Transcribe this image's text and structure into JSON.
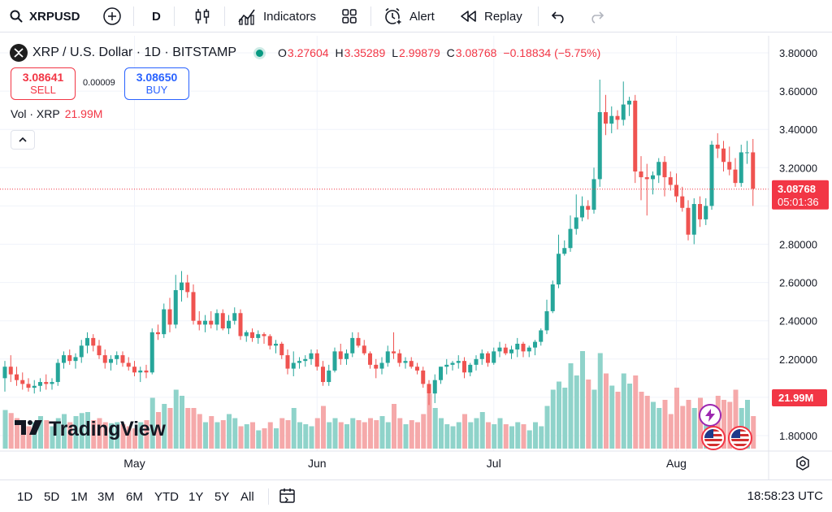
{
  "toolbar": {
    "symbol": "XRPUSD",
    "interval": "D",
    "indicators_label": "Indicators",
    "alert_label": "Alert",
    "replay_label": "Replay"
  },
  "legend": {
    "title": "XRP / U.S. Dollar · 1D · BITSTAMP",
    "open_key": "O",
    "open": "3.27604",
    "high_key": "H",
    "high": "3.35289",
    "low_key": "L",
    "low": "2.99879",
    "close_key": "C",
    "close": "3.08768",
    "change": "−0.18834 (−5.75%)"
  },
  "trade": {
    "sell_price": "3.08641",
    "sell_label": "SELL",
    "spread": "0.00009",
    "buy_price": "3.08650",
    "buy_label": "BUY"
  },
  "volume_legend": {
    "label": "Vol · XRP",
    "value": "21.99M"
  },
  "branding": {
    "logo_text": "TradingView"
  },
  "price_axis": {
    "ticks": [
      "3.80000",
      "3.60000",
      "3.40000",
      "3.20000",
      "2.80000",
      "2.60000",
      "2.40000",
      "2.20000",
      "1.80000"
    ],
    "last_price": "3.08768",
    "countdown": "05:01:36",
    "volume_tag": "21.99M"
  },
  "time_axis": {
    "labels": [
      "May",
      "Jun",
      "Jul",
      "Aug"
    ]
  },
  "bottom_bar": {
    "ranges": [
      "1D",
      "5D",
      "1M",
      "3M",
      "6M",
      "YTD",
      "1Y",
      "5Y",
      "All"
    ],
    "clock": "18:58:23 UTC"
  },
  "colors": {
    "up": "#26a69a",
    "down": "#ef5350",
    "up_vol": "#8fd3ca",
    "down_vol": "#f5a9aa",
    "accent": "#2962ff"
  },
  "chart_data": {
    "type": "candlestick",
    "title": "XRP / U.S. Dollar · 1D · BITSTAMP",
    "ylim": [
      1.71,
      3.88
    ],
    "x_start": "2025-04-09",
    "candles": [
      [
        2.1,
        2.19,
        2.03,
        2.16
      ],
      [
        2.16,
        2.22,
        2.08,
        2.12
      ],
      [
        2.12,
        2.16,
        2.06,
        2.09
      ],
      [
        2.09,
        2.13,
        2.04,
        2.07
      ],
      [
        2.07,
        2.1,
        2.03,
        2.05
      ],
      [
        2.05,
        2.09,
        2.02,
        2.06
      ],
      [
        2.06,
        2.1,
        2.03,
        2.08
      ],
      [
        2.08,
        2.12,
        2.04,
        2.07
      ],
      [
        2.07,
        2.1,
        2.04,
        2.08
      ],
      [
        2.08,
        2.2,
        2.06,
        2.18
      ],
      [
        2.18,
        2.24,
        2.15,
        2.22
      ],
      [
        2.22,
        2.25,
        2.17,
        2.19
      ],
      [
        2.19,
        2.23,
        2.15,
        2.21
      ],
      [
        2.21,
        2.3,
        2.18,
        2.27
      ],
      [
        2.27,
        2.34,
        2.23,
        2.31
      ],
      [
        2.31,
        2.33,
        2.24,
        2.27
      ],
      [
        2.27,
        2.3,
        2.2,
        2.22
      ],
      [
        2.22,
        2.25,
        2.15,
        2.18
      ],
      [
        2.18,
        2.22,
        2.14,
        2.2
      ],
      [
        2.2,
        2.24,
        2.17,
        2.22
      ],
      [
        2.22,
        2.24,
        2.16,
        2.18
      ],
      [
        2.18,
        2.21,
        2.14,
        2.16
      ],
      [
        2.16,
        2.19,
        2.11,
        2.13
      ],
      [
        2.13,
        2.16,
        2.08,
        2.14
      ],
      [
        2.14,
        2.17,
        2.1,
        2.13
      ],
      [
        2.13,
        2.36,
        2.12,
        2.34
      ],
      [
        2.34,
        2.38,
        2.3,
        2.33
      ],
      [
        2.33,
        2.49,
        2.31,
        2.46
      ],
      [
        2.46,
        2.52,
        2.34,
        2.38
      ],
      [
        2.38,
        2.64,
        2.36,
        2.56
      ],
      [
        2.56,
        2.66,
        2.5,
        2.6
      ],
      [
        2.6,
        2.64,
        2.52,
        2.55
      ],
      [
        2.55,
        2.59,
        2.38,
        2.4
      ],
      [
        2.4,
        2.45,
        2.35,
        2.38
      ],
      [
        2.38,
        2.43,
        2.34,
        2.4
      ],
      [
        2.4,
        2.45,
        2.36,
        2.38
      ],
      [
        2.38,
        2.46,
        2.35,
        2.44
      ],
      [
        2.44,
        2.46,
        2.35,
        2.36
      ],
      [
        2.36,
        2.43,
        2.33,
        2.4
      ],
      [
        2.4,
        2.47,
        2.38,
        2.44
      ],
      [
        2.44,
        2.46,
        2.3,
        2.32
      ],
      [
        2.32,
        2.35,
        2.29,
        2.34
      ],
      [
        2.34,
        2.36,
        2.29,
        2.31
      ],
      [
        2.31,
        2.35,
        2.28,
        2.33
      ],
      [
        2.33,
        2.34,
        2.28,
        2.32
      ],
      [
        2.32,
        2.33,
        2.25,
        2.27
      ],
      [
        2.27,
        2.3,
        2.23,
        2.28
      ],
      [
        2.28,
        2.29,
        2.2,
        2.22
      ],
      [
        2.22,
        2.25,
        2.12,
        2.15
      ],
      [
        2.15,
        2.24,
        2.11,
        2.18
      ],
      [
        2.18,
        2.21,
        2.15,
        2.19
      ],
      [
        2.19,
        2.22,
        2.16,
        2.2
      ],
      [
        2.2,
        2.25,
        2.17,
        2.23
      ],
      [
        2.23,
        2.25,
        2.14,
        2.16
      ],
      [
        2.16,
        2.19,
        2.06,
        2.08
      ],
      [
        2.08,
        2.17,
        2.06,
        2.14
      ],
      [
        2.14,
        2.26,
        2.13,
        2.24
      ],
      [
        2.24,
        2.28,
        2.17,
        2.2
      ],
      [
        2.2,
        2.25,
        2.17,
        2.23
      ],
      [
        2.23,
        2.34,
        2.21,
        2.31
      ],
      [
        2.31,
        2.34,
        2.26,
        2.27
      ],
      [
        2.27,
        2.3,
        2.22,
        2.23
      ],
      [
        2.23,
        2.24,
        2.15,
        2.17
      ],
      [
        2.17,
        2.2,
        2.1,
        2.15
      ],
      [
        2.15,
        2.21,
        2.12,
        2.18
      ],
      [
        2.18,
        2.27,
        2.16,
        2.24
      ],
      [
        2.24,
        2.34,
        2.2,
        2.23
      ],
      [
        2.23,
        2.25,
        2.16,
        2.18
      ],
      [
        2.18,
        2.21,
        2.15,
        2.19
      ],
      [
        2.19,
        2.21,
        2.15,
        2.16
      ],
      [
        2.16,
        2.18,
        2.12,
        2.14
      ],
      [
        2.14,
        2.16,
        2.05,
        2.07
      ],
      [
        2.07,
        2.09,
        1.96,
        2.02
      ],
      [
        2.02,
        2.12,
        1.97,
        2.09
      ],
      [
        2.09,
        2.16,
        2.07,
        2.16
      ],
      [
        2.16,
        2.2,
        2.12,
        2.17
      ],
      [
        2.17,
        2.19,
        2.14,
        2.18
      ],
      [
        2.18,
        2.22,
        2.15,
        2.19
      ],
      [
        2.19,
        2.21,
        2.1,
        2.13
      ],
      [
        2.13,
        2.18,
        2.11,
        2.17
      ],
      [
        2.17,
        2.22,
        2.14,
        2.2
      ],
      [
        2.2,
        2.25,
        2.17,
        2.23
      ],
      [
        2.23,
        2.24,
        2.16,
        2.18
      ],
      [
        2.18,
        2.26,
        2.17,
        2.24
      ],
      [
        2.24,
        2.29,
        2.21,
        2.26
      ],
      [
        2.26,
        2.28,
        2.22,
        2.23
      ],
      [
        2.23,
        2.27,
        2.2,
        2.25
      ],
      [
        2.25,
        2.31,
        2.21,
        2.28
      ],
      [
        2.28,
        2.29,
        2.21,
        2.24
      ],
      [
        2.24,
        2.27,
        2.21,
        2.26
      ],
      [
        2.26,
        2.3,
        2.22,
        2.29
      ],
      [
        2.29,
        2.36,
        2.27,
        2.35
      ],
      [
        2.35,
        2.51,
        2.33,
        2.45
      ],
      [
        2.45,
        2.61,
        2.44,
        2.59
      ],
      [
        2.59,
        2.85,
        2.57,
        2.75
      ],
      [
        2.75,
        2.82,
        2.74,
        2.78
      ],
      [
        2.78,
        2.95,
        2.76,
        2.88
      ],
      [
        2.88,
        3.06,
        2.85,
        2.94
      ],
      [
        2.94,
        3.05,
        2.92,
        3.0
      ],
      [
        3.0,
        3.03,
        2.93,
        2.98
      ],
      [
        2.98,
        3.2,
        2.96,
        3.14
      ],
      [
        3.14,
        3.66,
        3.1,
        3.49
      ],
      [
        3.49,
        3.58,
        3.37,
        3.43
      ],
      [
        3.43,
        3.52,
        3.38,
        3.47
      ],
      [
        3.47,
        3.5,
        3.4,
        3.45
      ],
      [
        3.45,
        3.65,
        3.42,
        3.53
      ],
      [
        3.53,
        3.57,
        3.47,
        3.55
      ],
      [
        3.55,
        3.58,
        3.12,
        3.18
      ],
      [
        3.18,
        3.26,
        3.03,
        3.15
      ],
      [
        3.15,
        3.22,
        2.95,
        3.14
      ],
      [
        3.14,
        3.18,
        3.06,
        3.16
      ],
      [
        3.16,
        3.25,
        3.12,
        3.23
      ],
      [
        3.23,
        3.26,
        3.05,
        3.15
      ],
      [
        3.15,
        3.18,
        3.08,
        3.11
      ],
      [
        3.11,
        3.17,
        3.02,
        3.05
      ],
      [
        3.05,
        3.1,
        2.97,
        2.99
      ],
      [
        2.99,
        3.03,
        2.82,
        2.85
      ],
      [
        2.85,
        3.04,
        2.8,
        3.01
      ],
      [
        3.01,
        3.05,
        2.89,
        2.93
      ],
      [
        2.93,
        3.04,
        2.9,
        3.0
      ],
      [
        3.0,
        3.34,
        2.98,
        3.32
      ],
      [
        3.32,
        3.38,
        3.25,
        3.3
      ],
      [
        3.3,
        3.34,
        3.18,
        3.23
      ],
      [
        3.23,
        3.31,
        3.16,
        3.19
      ],
      [
        3.19,
        3.25,
        3.1,
        3.12
      ],
      [
        3.12,
        3.32,
        3.1,
        3.28
      ],
      [
        3.28,
        3.34,
        3.22,
        3.28
      ],
      [
        3.28,
        3.35,
        3.0,
        3.09
      ]
    ],
    "volume_rel": [
      0.38,
      0.35,
      0.3,
      0.24,
      0.22,
      0.26,
      0.32,
      0.28,
      0.22,
      0.3,
      0.34,
      0.26,
      0.32,
      0.35,
      0.36,
      0.28,
      0.3,
      0.26,
      0.25,
      0.26,
      0.24,
      0.22,
      0.2,
      0.26,
      0.28,
      0.5,
      0.36,
      0.44,
      0.4,
      0.58,
      0.52,
      0.4,
      0.4,
      0.34,
      0.26,
      0.32,
      0.26,
      0.28,
      0.34,
      0.3,
      0.22,
      0.24,
      0.26,
      0.18,
      0.2,
      0.26,
      0.2,
      0.3,
      0.28,
      0.4,
      0.26,
      0.24,
      0.22,
      0.3,
      0.42,
      0.26,
      0.3,
      0.26,
      0.24,
      0.3,
      0.28,
      0.26,
      0.3,
      0.28,
      0.32,
      0.26,
      0.44,
      0.3,
      0.24,
      0.28,
      0.26,
      0.34,
      0.54,
      0.4,
      0.3,
      0.24,
      0.22,
      0.26,
      0.34,
      0.26,
      0.3,
      0.36,
      0.26,
      0.24,
      0.3,
      0.24,
      0.22,
      0.26,
      0.24,
      0.18,
      0.26,
      0.22,
      0.42,
      0.58,
      0.66,
      0.6,
      0.84,
      0.72,
      0.96,
      0.68,
      0.58,
      0.94,
      0.74,
      0.62,
      0.56,
      0.74,
      0.64,
      0.72,
      0.56,
      0.52,
      0.46,
      0.4,
      0.48,
      0.34,
      0.6,
      0.42,
      0.48,
      0.4,
      0.5,
      0.42,
      0.34,
      0.52,
      0.48,
      0.46,
      0.58,
      0.4,
      0.48,
      0.32
    ]
  }
}
